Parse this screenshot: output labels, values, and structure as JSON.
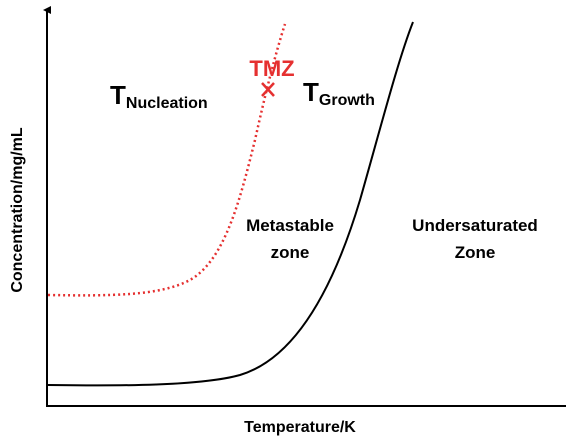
{
  "axes": {
    "y_label": "Concentration/mg/mL",
    "x_label": "Temperature/K"
  },
  "annotations": {
    "tmz": "TMZ",
    "nucleation": {
      "main": "T",
      "sub": "Nucleation"
    },
    "growth": {
      "main": "T",
      "sub": "Growth"
    },
    "metastable": [
      "Metastable",
      "zone"
    ],
    "undersaturated": [
      "Undersaturated",
      "Zone"
    ]
  }
}
